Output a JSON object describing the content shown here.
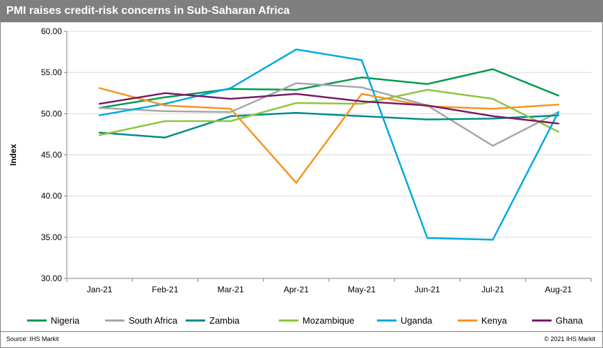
{
  "header": {
    "title": "PMI raises credit-risk concerns in Sub-Saharan Africa"
  },
  "footer": {
    "source": "Source: IHS Markit",
    "copyright": "© 2021 IHS Markit"
  },
  "chart_data": {
    "type": "line",
    "title": "PMI raises credit-risk concerns in Sub-Saharan Africa",
    "xlabel": "",
    "ylabel": "Index",
    "ylim": [
      30,
      60
    ],
    "yticks": [
      30,
      35,
      40,
      45,
      50,
      55,
      60
    ],
    "ytick_labels": [
      "30.00",
      "35.00",
      "40.00",
      "45.00",
      "50.00",
      "55.00",
      "60.00"
    ],
    "grid": true,
    "legend_position": "bottom",
    "categories": [
      "Jan-21",
      "Feb-21",
      "Mar-21",
      "Apr-21",
      "May-21",
      "Jun-21",
      "Jul-21",
      "Aug-21"
    ],
    "series": [
      {
        "name": "Nigeria",
        "color": "#009a4e",
        "values": [
          50.7,
          52.0,
          53.0,
          52.9,
          54.4,
          53.6,
          55.4,
          52.2
        ]
      },
      {
        "name": "South Africa",
        "color": "#a6a6a6",
        "values": [
          50.7,
          50.3,
          50.2,
          53.7,
          53.2,
          51.0,
          46.1,
          50.2
        ]
      },
      {
        "name": "Zambia",
        "color": "#008b8b",
        "values": [
          47.7,
          47.1,
          49.7,
          50.1,
          49.7,
          49.3,
          49.4,
          49.8
        ]
      },
      {
        "name": "Mozambique",
        "color": "#8dc63f",
        "values": [
          47.4,
          49.1,
          49.1,
          51.3,
          51.2,
          52.9,
          51.8,
          47.8
        ]
      },
      {
        "name": "Uganda",
        "color": "#00a9e0",
        "values": [
          49.8,
          51.2,
          53.1,
          57.8,
          56.5,
          34.9,
          34.7,
          50.2
        ]
      },
      {
        "name": "Kenya",
        "color": "#f7941d",
        "values": [
          53.1,
          51.0,
          50.6,
          41.6,
          52.4,
          50.9,
          50.6,
          51.1
        ]
      },
      {
        "name": "Ghana",
        "color": "#7b1a66",
        "values": [
          51.2,
          52.5,
          51.8,
          52.4,
          51.5,
          51.0,
          49.7,
          48.8
        ]
      }
    ]
  }
}
